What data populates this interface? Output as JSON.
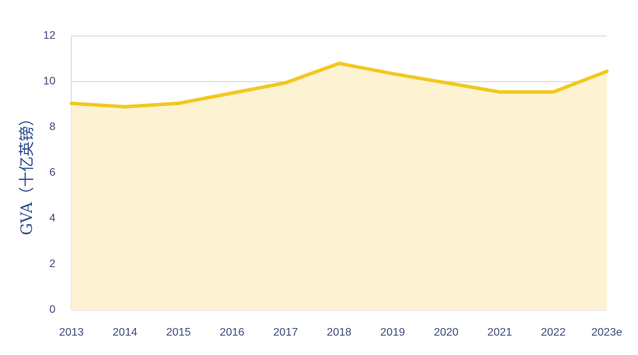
{
  "chart_data": {
    "type": "area",
    "title": "",
    "xlabel": "",
    "ylabel": "GVA（十亿英镑）",
    "categories": [
      "2013",
      "2014",
      "2015",
      "2016",
      "2017",
      "2018",
      "2019",
      "2020",
      "2021",
      "2022",
      "2023e"
    ],
    "series": [
      {
        "name": "",
        "values": [
          9.05,
          8.9,
          9.05,
          9.5,
          9.95,
          10.8,
          10.35,
          9.95,
          9.55,
          9.55,
          10.45
        ]
      }
    ],
    "ylim": [
      0,
      12
    ],
    "yticks": [
      "0",
      "2",
      "4",
      "6",
      "8",
      "10",
      "12"
    ],
    "grid": true,
    "legend": "none",
    "colors": {
      "line": "#f2c81e",
      "fill": "#fdf3d3",
      "grid": "#c9c9d4",
      "tick_text": "#3d4a7a",
      "axis_title": "#2b4a8b"
    }
  }
}
